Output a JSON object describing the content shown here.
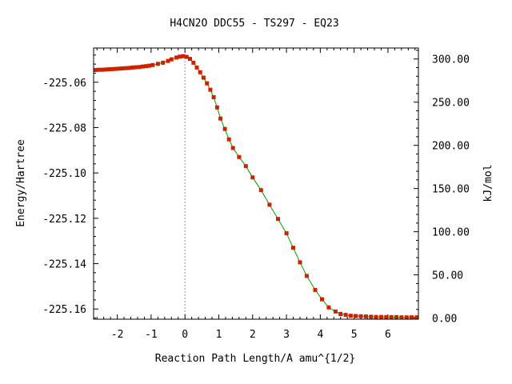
{
  "chart_data": {
    "type": "line",
    "title": "H4CN2O   DDC55 - TS297 - EQ23",
    "xlabel": "Reaction Path Length/A amu^{1/2}",
    "ylabel": "Energy/Hartree",
    "y2label": "kJ/mol",
    "xlim": [
      -2.7,
      6.9
    ],
    "ylim": [
      -225.1645,
      -225.0449
    ],
    "y2lim": [
      -1.31,
      312.72
    ],
    "x_ticks": [
      -2,
      -1,
      0,
      1,
      2,
      3,
      4,
      5,
      6
    ],
    "x_tick_labels": [
      "-2",
      "-1",
      "0",
      "1",
      "2",
      "3",
      "4",
      "5",
      "6"
    ],
    "y_ticks": [
      -225.06,
      -225.08,
      -225.1,
      -225.12,
      -225.14,
      -225.16
    ],
    "y_tick_labels": [
      "-225.06",
      "-225.08",
      "-225.10",
      "-225.12",
      "-225.14",
      "-225.16"
    ],
    "y2_ticks": [
      0,
      50,
      100,
      150,
      200,
      250,
      300
    ],
    "y2_tick_labels": [
      "0.00",
      "50.00",
      "100.00",
      "150.00",
      "200.00",
      "250.00",
      "300.00"
    ],
    "ts_marker_x": 0,
    "grid": false,
    "colors": {
      "line": "#00a000",
      "marker": "#cc2200",
      "ts_line": "#999999",
      "axis": "#000000"
    },
    "series": [
      {
        "points": [
          [
            -2.65,
            -225.0546
          ],
          [
            -2.55,
            -225.0545
          ],
          [
            -2.45,
            -225.0545
          ],
          [
            -2.35,
            -225.0544
          ],
          [
            -2.25,
            -225.0543
          ],
          [
            -2.15,
            -225.0542
          ],
          [
            -2.05,
            -225.0541
          ],
          [
            -1.95,
            -225.054
          ],
          [
            -1.85,
            -225.0539
          ],
          [
            -1.75,
            -225.0538
          ],
          [
            -1.65,
            -225.0537
          ],
          [
            -1.55,
            -225.0535
          ],
          [
            -1.45,
            -225.0534
          ],
          [
            -1.35,
            -225.0533
          ],
          [
            -1.25,
            -225.0531
          ],
          [
            -1.15,
            -225.0529
          ],
          [
            -1.05,
            -225.0527
          ],
          [
            -0.95,
            -225.0524
          ],
          [
            -0.8,
            -225.0519
          ],
          [
            -0.65,
            -225.0514
          ],
          [
            -0.5,
            -225.0506
          ],
          [
            -0.4,
            -225.0499
          ],
          [
            -0.25,
            -225.0491
          ],
          [
            -0.15,
            -225.0487
          ],
          [
            -0.05,
            -225.0485
          ],
          [
            0.05,
            -225.0488
          ],
          [
            0.15,
            -225.0497
          ],
          [
            0.25,
            -225.0514
          ],
          [
            0.35,
            -225.0535
          ],
          [
            0.45,
            -225.0556
          ],
          [
            0.55,
            -225.058
          ],
          [
            0.65,
            -225.0605
          ],
          [
            0.75,
            -225.0633
          ],
          [
            0.85,
            -225.0666
          ],
          [
            0.95,
            -225.0711
          ],
          [
            1.05,
            -225.076
          ],
          [
            1.18,
            -225.0806
          ],
          [
            1.3,
            -225.0852
          ],
          [
            1.42,
            -225.089
          ],
          [
            1.6,
            -225.093
          ],
          [
            1.8,
            -225.097
          ],
          [
            2.0,
            -225.102
          ],
          [
            2.25,
            -225.1076
          ],
          [
            2.5,
            -225.114
          ],
          [
            2.75,
            -225.1203
          ],
          [
            3.0,
            -225.1266
          ],
          [
            3.2,
            -225.133
          ],
          [
            3.4,
            -225.1394
          ],
          [
            3.6,
            -225.1454
          ],
          [
            3.85,
            -225.1516
          ],
          [
            4.05,
            -225.1557
          ],
          [
            4.25,
            -225.1593
          ],
          [
            4.45,
            -225.1611
          ],
          [
            4.6,
            -225.1622
          ],
          [
            4.75,
            -225.1626
          ],
          [
            4.9,
            -225.163
          ],
          [
            5.05,
            -225.1631
          ],
          [
            5.2,
            -225.1632
          ],
          [
            5.35,
            -225.1633
          ],
          [
            5.5,
            -225.1634
          ],
          [
            5.65,
            -225.1635
          ],
          [
            5.8,
            -225.1635
          ],
          [
            5.95,
            -225.1636
          ],
          [
            6.1,
            -225.1636
          ],
          [
            6.25,
            -225.1636
          ],
          [
            6.4,
            -225.1637
          ],
          [
            6.55,
            -225.1637
          ],
          [
            6.7,
            -225.1637
          ],
          [
            6.85,
            -225.1637
          ]
        ]
      }
    ]
  }
}
